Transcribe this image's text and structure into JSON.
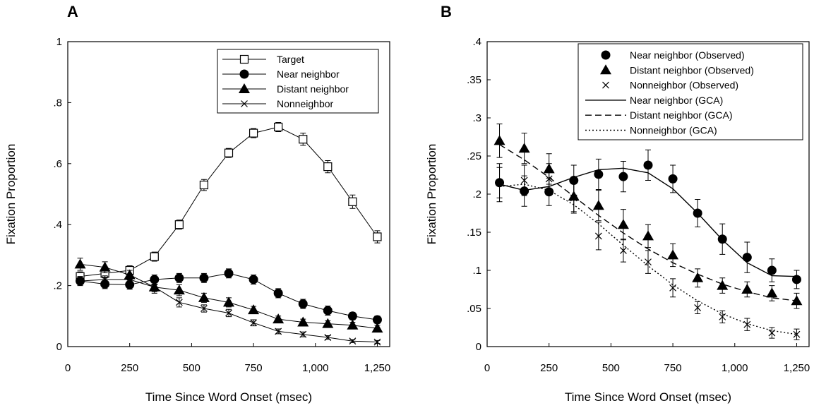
{
  "chart_data": [
    {
      "type": "line",
      "panel_label": "A",
      "xlabel": "Time Since Word Onset (msec)",
      "ylabel": "Fixation Proportion",
      "xlim": [
        0,
        1300
      ],
      "ylim": [
        0,
        1
      ],
      "x_ticks": [
        0,
        250,
        500,
        750,
        1000,
        1250
      ],
      "x_tick_labels": [
        "0",
        "250",
        "500",
        "750",
        "1,000",
        "1,250"
      ],
      "y_ticks": [
        0,
        0.2,
        0.4,
        0.6,
        0.8,
        1
      ],
      "y_tick_labels": [
        "0",
        ".2",
        ".4",
        ".6",
        ".8",
        "1"
      ],
      "legend_position": "top-right",
      "grid": false,
      "x": [
        50,
        150,
        250,
        350,
        450,
        550,
        650,
        750,
        850,
        950,
        1050,
        1150,
        1250
      ],
      "series": [
        {
          "name": "Target",
          "marker": "open-square",
          "values": [
            0.23,
            0.24,
            0.25,
            0.295,
            0.4,
            0.53,
            0.635,
            0.7,
            0.72,
            0.68,
            0.59,
            0.475,
            0.36
          ],
          "errors": [
            0.015,
            0.015,
            0.015,
            0.015,
            0.015,
            0.018,
            0.015,
            0.015,
            0.015,
            0.02,
            0.02,
            0.022,
            0.02
          ]
        },
        {
          "name": "Near neighbor",
          "marker": "filled-circle",
          "values": [
            0.215,
            0.205,
            0.203,
            0.22,
            0.225,
            0.225,
            0.24,
            0.22,
            0.175,
            0.14,
            0.118,
            0.1,
            0.088
          ],
          "errors": [
            0.015,
            0.015,
            0.015,
            0.015,
            0.015,
            0.015,
            0.015,
            0.015,
            0.015,
            0.015,
            0.015,
            0.012,
            0.012
          ]
        },
        {
          "name": "Distant neighbor",
          "marker": "filled-triangle",
          "values": [
            0.27,
            0.26,
            0.235,
            0.195,
            0.185,
            0.16,
            0.145,
            0.12,
            0.09,
            0.08,
            0.075,
            0.07,
            0.06
          ],
          "errors": [
            0.02,
            0.018,
            0.015,
            0.02,
            0.018,
            0.015,
            0.015,
            0.012,
            0.01,
            0.01,
            0.01,
            0.01,
            0.01
          ]
        },
        {
          "name": "Nonneighbor",
          "marker": "x",
          "values": [
            0.215,
            0.22,
            0.22,
            0.195,
            0.145,
            0.125,
            0.11,
            0.078,
            0.05,
            0.04,
            0.03,
            0.018,
            0.015
          ],
          "errors": [
            0.012,
            0.012,
            0.012,
            0.015,
            0.015,
            0.012,
            0.012,
            0.01,
            0.008,
            0.008,
            0.006,
            0.005,
            0.005
          ]
        }
      ]
    },
    {
      "type": "line",
      "panel_label": "B",
      "xlabel": "Time Since Word Onset (msec)",
      "ylabel": "Fixation Proportion",
      "xlim": [
        0,
        1300
      ],
      "ylim": [
        0,
        0.4
      ],
      "x_ticks": [
        0,
        250,
        500,
        750,
        1000,
        1250
      ],
      "x_tick_labels": [
        "0",
        "250",
        "500",
        "750",
        "1,000",
        "1,250"
      ],
      "y_ticks": [
        0,
        0.05,
        0.1,
        0.15,
        0.2,
        0.25,
        0.3,
        0.35,
        0.4
      ],
      "y_tick_labels": [
        "0",
        ".05",
        ".1",
        ".15",
        ".2",
        ".25",
        ".3",
        ".35",
        ".4"
      ],
      "legend_position": "top-right",
      "grid": false,
      "x": [
        50,
        150,
        250,
        350,
        450,
        550,
        650,
        750,
        850,
        950,
        1050,
        1150,
        1250
      ],
      "series": [
        {
          "name": "Near neighbor (Observed)",
          "marker": "filled-circle",
          "kind": "observed",
          "values": [
            0.215,
            0.204,
            0.203,
            0.218,
            0.226,
            0.223,
            0.238,
            0.22,
            0.175,
            0.141,
            0.117,
            0.1,
            0.088
          ],
          "errors": [
            0.025,
            0.02,
            0.018,
            0.02,
            0.02,
            0.02,
            0.02,
            0.018,
            0.018,
            0.02,
            0.02,
            0.015,
            0.012
          ]
        },
        {
          "name": "Distant neighbor (Observed)",
          "marker": "filled-triangle",
          "kind": "observed",
          "values": [
            0.27,
            0.26,
            0.233,
            0.197,
            0.185,
            0.16,
            0.145,
            0.12,
            0.09,
            0.08,
            0.075,
            0.07,
            0.06
          ],
          "errors": [
            0.022,
            0.02,
            0.02,
            0.02,
            0.02,
            0.02,
            0.015,
            0.015,
            0.012,
            0.01,
            0.01,
            0.01,
            0.01
          ]
        },
        {
          "name": "Nonneighbor (Observed)",
          "marker": "x",
          "kind": "observed",
          "values": [
            0.215,
            0.218,
            0.22,
            0.195,
            0.145,
            0.126,
            0.111,
            0.077,
            0.051,
            0.039,
            0.029,
            0.018,
            0.016
          ],
          "errors": [
            0.02,
            0.02,
            0.02,
            0.02,
            0.018,
            0.015,
            0.015,
            0.012,
            0.008,
            0.008,
            0.008,
            0.007,
            0.007
          ]
        },
        {
          "name": "Near neighbor (GCA)",
          "line_style": "solid",
          "kind": "model",
          "values": [
            0.213,
            0.205,
            0.21,
            0.222,
            0.232,
            0.234,
            0.228,
            0.207,
            0.175,
            0.14,
            0.11,
            0.093,
            0.092
          ]
        },
        {
          "name": "Distant neighbor (GCA)",
          "line_style": "dashed",
          "kind": "model",
          "values": [
            0.265,
            0.245,
            0.222,
            0.197,
            0.172,
            0.149,
            0.128,
            0.11,
            0.095,
            0.082,
            0.072,
            0.064,
            0.06
          ]
        },
        {
          "name": "Nonneighbor (GCA)",
          "line_style": "dotted",
          "kind": "model",
          "values": [
            0.21,
            0.213,
            0.205,
            0.186,
            0.161,
            0.133,
            0.106,
            0.081,
            0.06,
            0.043,
            0.03,
            0.021,
            0.016
          ]
        }
      ]
    }
  ]
}
